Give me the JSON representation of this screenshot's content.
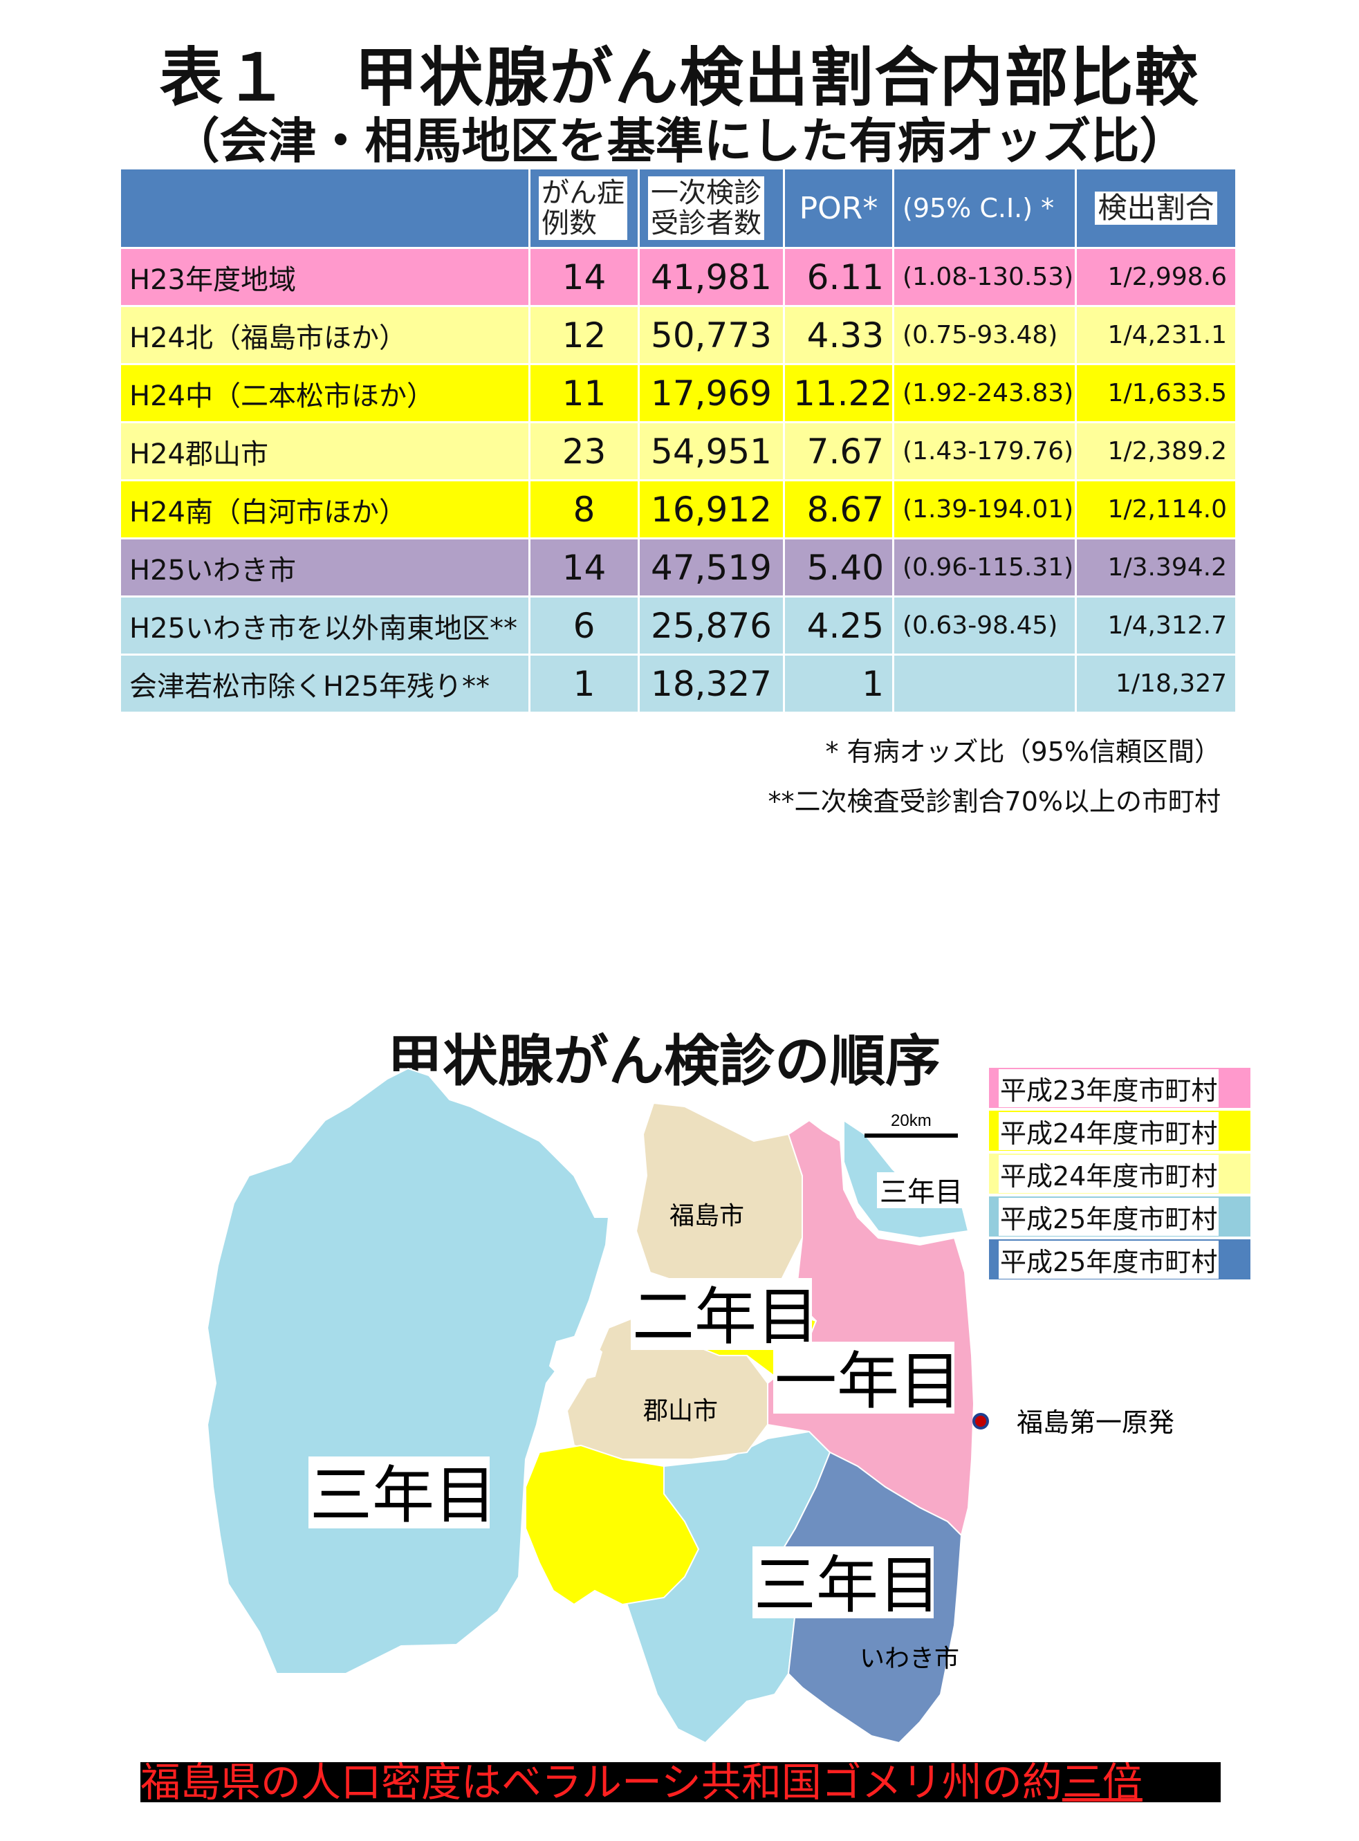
{
  "title_line1": "表１　甲状腺がん検出割合内部比較",
  "title_line2": "（会津・相馬地区を基準にした有病オッズ比）",
  "table": {
    "headers": [
      "",
      "がん症\n例数",
      "一次検診\n受診者数",
      "POR*",
      "(95% C.I.) *",
      "検出割合"
    ],
    "rows": [
      {
        "region": "H23年度地域",
        "cases": "14",
        "screened": "41,981",
        "por": "6.11",
        "ci": "(1.08-130.53)",
        "rate": "1/2,998.6",
        "color": "#ff99cc"
      },
      {
        "region": "H24北（福島市ほか）",
        "cases": "12",
        "screened": "50,773",
        "por": "4.33",
        "ci": "(0.75-93.48)",
        "rate": "1/4,231.1",
        "color": "#ffff99"
      },
      {
        "region": "H24中（二本松市ほか）",
        "cases": "11",
        "screened": "17,969",
        "por": "11.22",
        "ci": "(1.92-243.83)",
        "rate": "1/1,633.5",
        "color": "#ffff00"
      },
      {
        "region": "H24郡山市",
        "cases": "23",
        "screened": "54,951",
        "por": "7.67",
        "ci": "(1.43-179.76)",
        "rate": "1/2,389.2",
        "color": "#ffff99"
      },
      {
        "region": "H24南（白河市ほか）",
        "cases": "8",
        "screened": "16,912",
        "por": "8.67",
        "ci": "(1.39-194.01)",
        "rate": "1/2,114.0",
        "color": "#ffff00"
      },
      {
        "region": "H25いわき市",
        "cases": "14",
        "screened": "47,519",
        "por": "5.40",
        "ci": "(0.96-115.31)",
        "rate": "1/3.394.2",
        "color": "#b1a0c7"
      },
      {
        "region": "H25いわき市を以外南東地区**",
        "cases": "6",
        "screened": "25,876",
        "por": "4.25",
        "ci": "(0.63-98.45)",
        "rate": "1/4,312.7",
        "color": "#b7dee8"
      },
      {
        "region": "会津若松市除くH25年残り**",
        "cases": "1",
        "screened": "18,327",
        "por": "1",
        "ci": "",
        "rate": "1/18,327",
        "color": "#b7dee8"
      }
    ]
  },
  "notes": {
    "note1": "* 有病オッズ比（95%信頼区間）",
    "note2": "**二次検査受診割合70%以上の市町村"
  },
  "map": {
    "title": "甲状腺がん検診の順序",
    "scale_label": "20km",
    "labels": {
      "fukushima_city": "福島市",
      "koriyama_city": "郡山市",
      "iwaki_city": "いわき市",
      "plant": "福島第一原発",
      "year2": "二年目",
      "year1": "一年目",
      "year3_west": "三年目",
      "year3_south": "三年目",
      "year3_north": "三年目"
    },
    "colors": {
      "year1": "#f8aac8",
      "year2_north": "#ede0bf",
      "year2_mid": "#ffff00",
      "year3": "#a7dcea",
      "iwaki": "#6e8fc0",
      "plant_dot": "#c00000"
    },
    "legend": [
      {
        "label": "平成23年度市町村",
        "color": "#ff99cc"
      },
      {
        "label": "平成24年度市町村",
        "color": "#ffff00"
      },
      {
        "label": "平成24年度市町村",
        "color": "#ffff99"
      },
      {
        "label": "平成25年度市町村",
        "color": "#93cddd"
      },
      {
        "label": "平成25年度市町村",
        "color": "#4f81bd"
      }
    ]
  },
  "footer": {
    "text_main": "福島県の人口密度はベラルーシ共和国ゴメリ州の約",
    "text_emph": "三倍"
  }
}
